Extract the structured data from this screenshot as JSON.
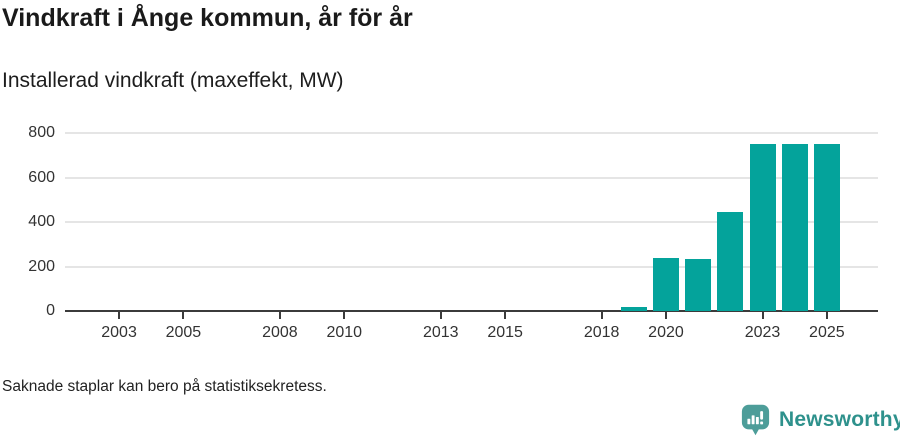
{
  "header": {
    "title": "Vindkraft i Ånge kommun, år för år",
    "subtitle": "Installerad vindkraft (maxeffekt, MW)"
  },
  "footer": {
    "note": "Saknade staplar kan bero på statistiksekretess."
  },
  "branding": {
    "name": "Newsworthy",
    "icon": "newsworthy-speech-bubble-barchart-icon",
    "icon_color": "#4d9d99",
    "text_color": "#2e918c"
  },
  "colors": {
    "bar": "#04a39b",
    "axis": "#3b3b3b",
    "grid": "#e5e5e5",
    "tick_text": "#333333"
  },
  "chart_data": {
    "type": "bar",
    "title": "Vindkraft i Ånge kommun, år för år",
    "subtitle": "Installerad vindkraft (maxeffekt, MW)",
    "x": [
      2019,
      2020,
      2021,
      2022,
      2023,
      2024,
      2025
    ],
    "values": [
      20,
      240,
      235,
      445,
      750,
      750,
      750
    ],
    "xticks": [
      2003,
      2005,
      2008,
      2010,
      2013,
      2015,
      2018,
      2020,
      2023,
      2025
    ],
    "yticks": [
      0,
      200,
      400,
      600,
      800
    ],
    "xlim": [
      2001.32,
      2026.59
    ],
    "ylim": [
      0,
      836
    ],
    "xlabel": "",
    "ylabel": "",
    "grid": "horizontal",
    "legend": "none"
  }
}
